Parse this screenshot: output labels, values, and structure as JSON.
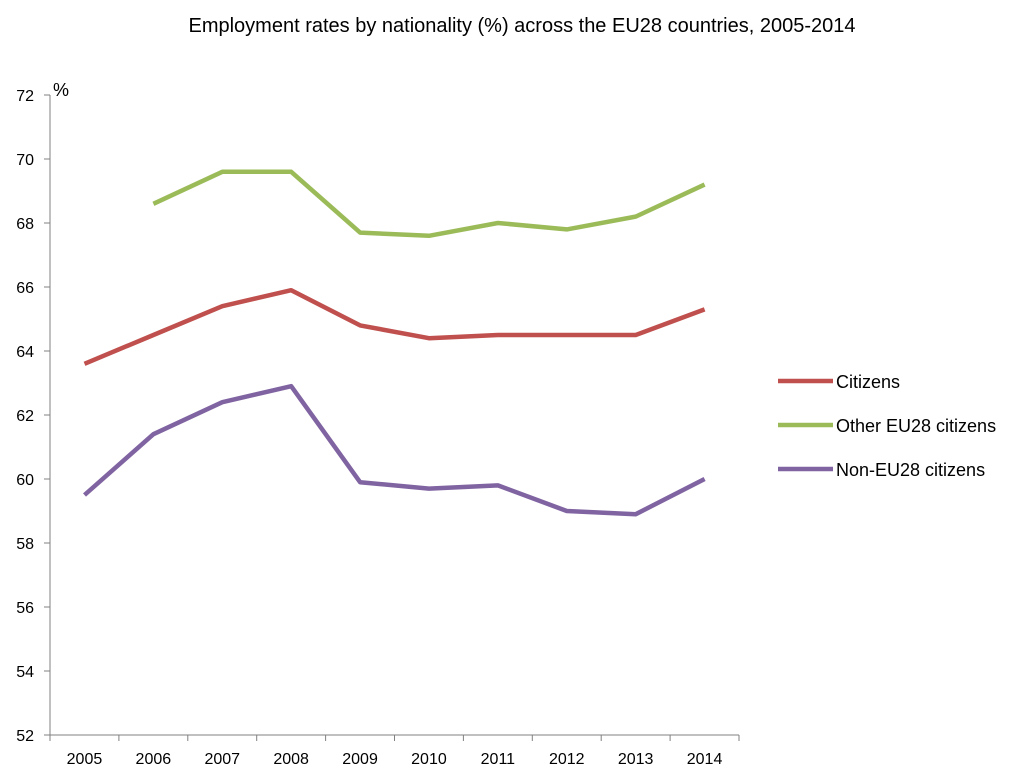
{
  "chart_data": {
    "type": "line",
    "title": "Employment rates by nationality (%) across the EU28 countries, 2005-2014",
    "ylabel": "%",
    "xlabel": "",
    "categories": [
      "2005",
      "2006",
      "2007",
      "2008",
      "2009",
      "2010",
      "2011",
      "2012",
      "2013",
      "2014"
    ],
    "ylim": [
      52,
      72
    ],
    "yticks": [
      52,
      54,
      56,
      58,
      60,
      62,
      64,
      66,
      68,
      70,
      72
    ],
    "grid": false,
    "legend_position": "right",
    "series": [
      {
        "name": "Citizens",
        "color": "#c0504d",
        "values": [
          63.6,
          64.5,
          65.4,
          65.9,
          64.8,
          64.4,
          64.5,
          64.5,
          64.5,
          65.3
        ]
      },
      {
        "name": "Other EU28 citizens",
        "color": "#9bbb59",
        "values": [
          null,
          68.6,
          69.6,
          69.6,
          67.7,
          67.6,
          68.0,
          67.8,
          68.2,
          69.2
        ]
      },
      {
        "name": "Non-EU28 citizens",
        "color": "#8064a2",
        "values": [
          59.5,
          61.4,
          62.4,
          62.9,
          59.9,
          59.7,
          59.8,
          59.0,
          58.9,
          60.0
        ]
      }
    ]
  }
}
